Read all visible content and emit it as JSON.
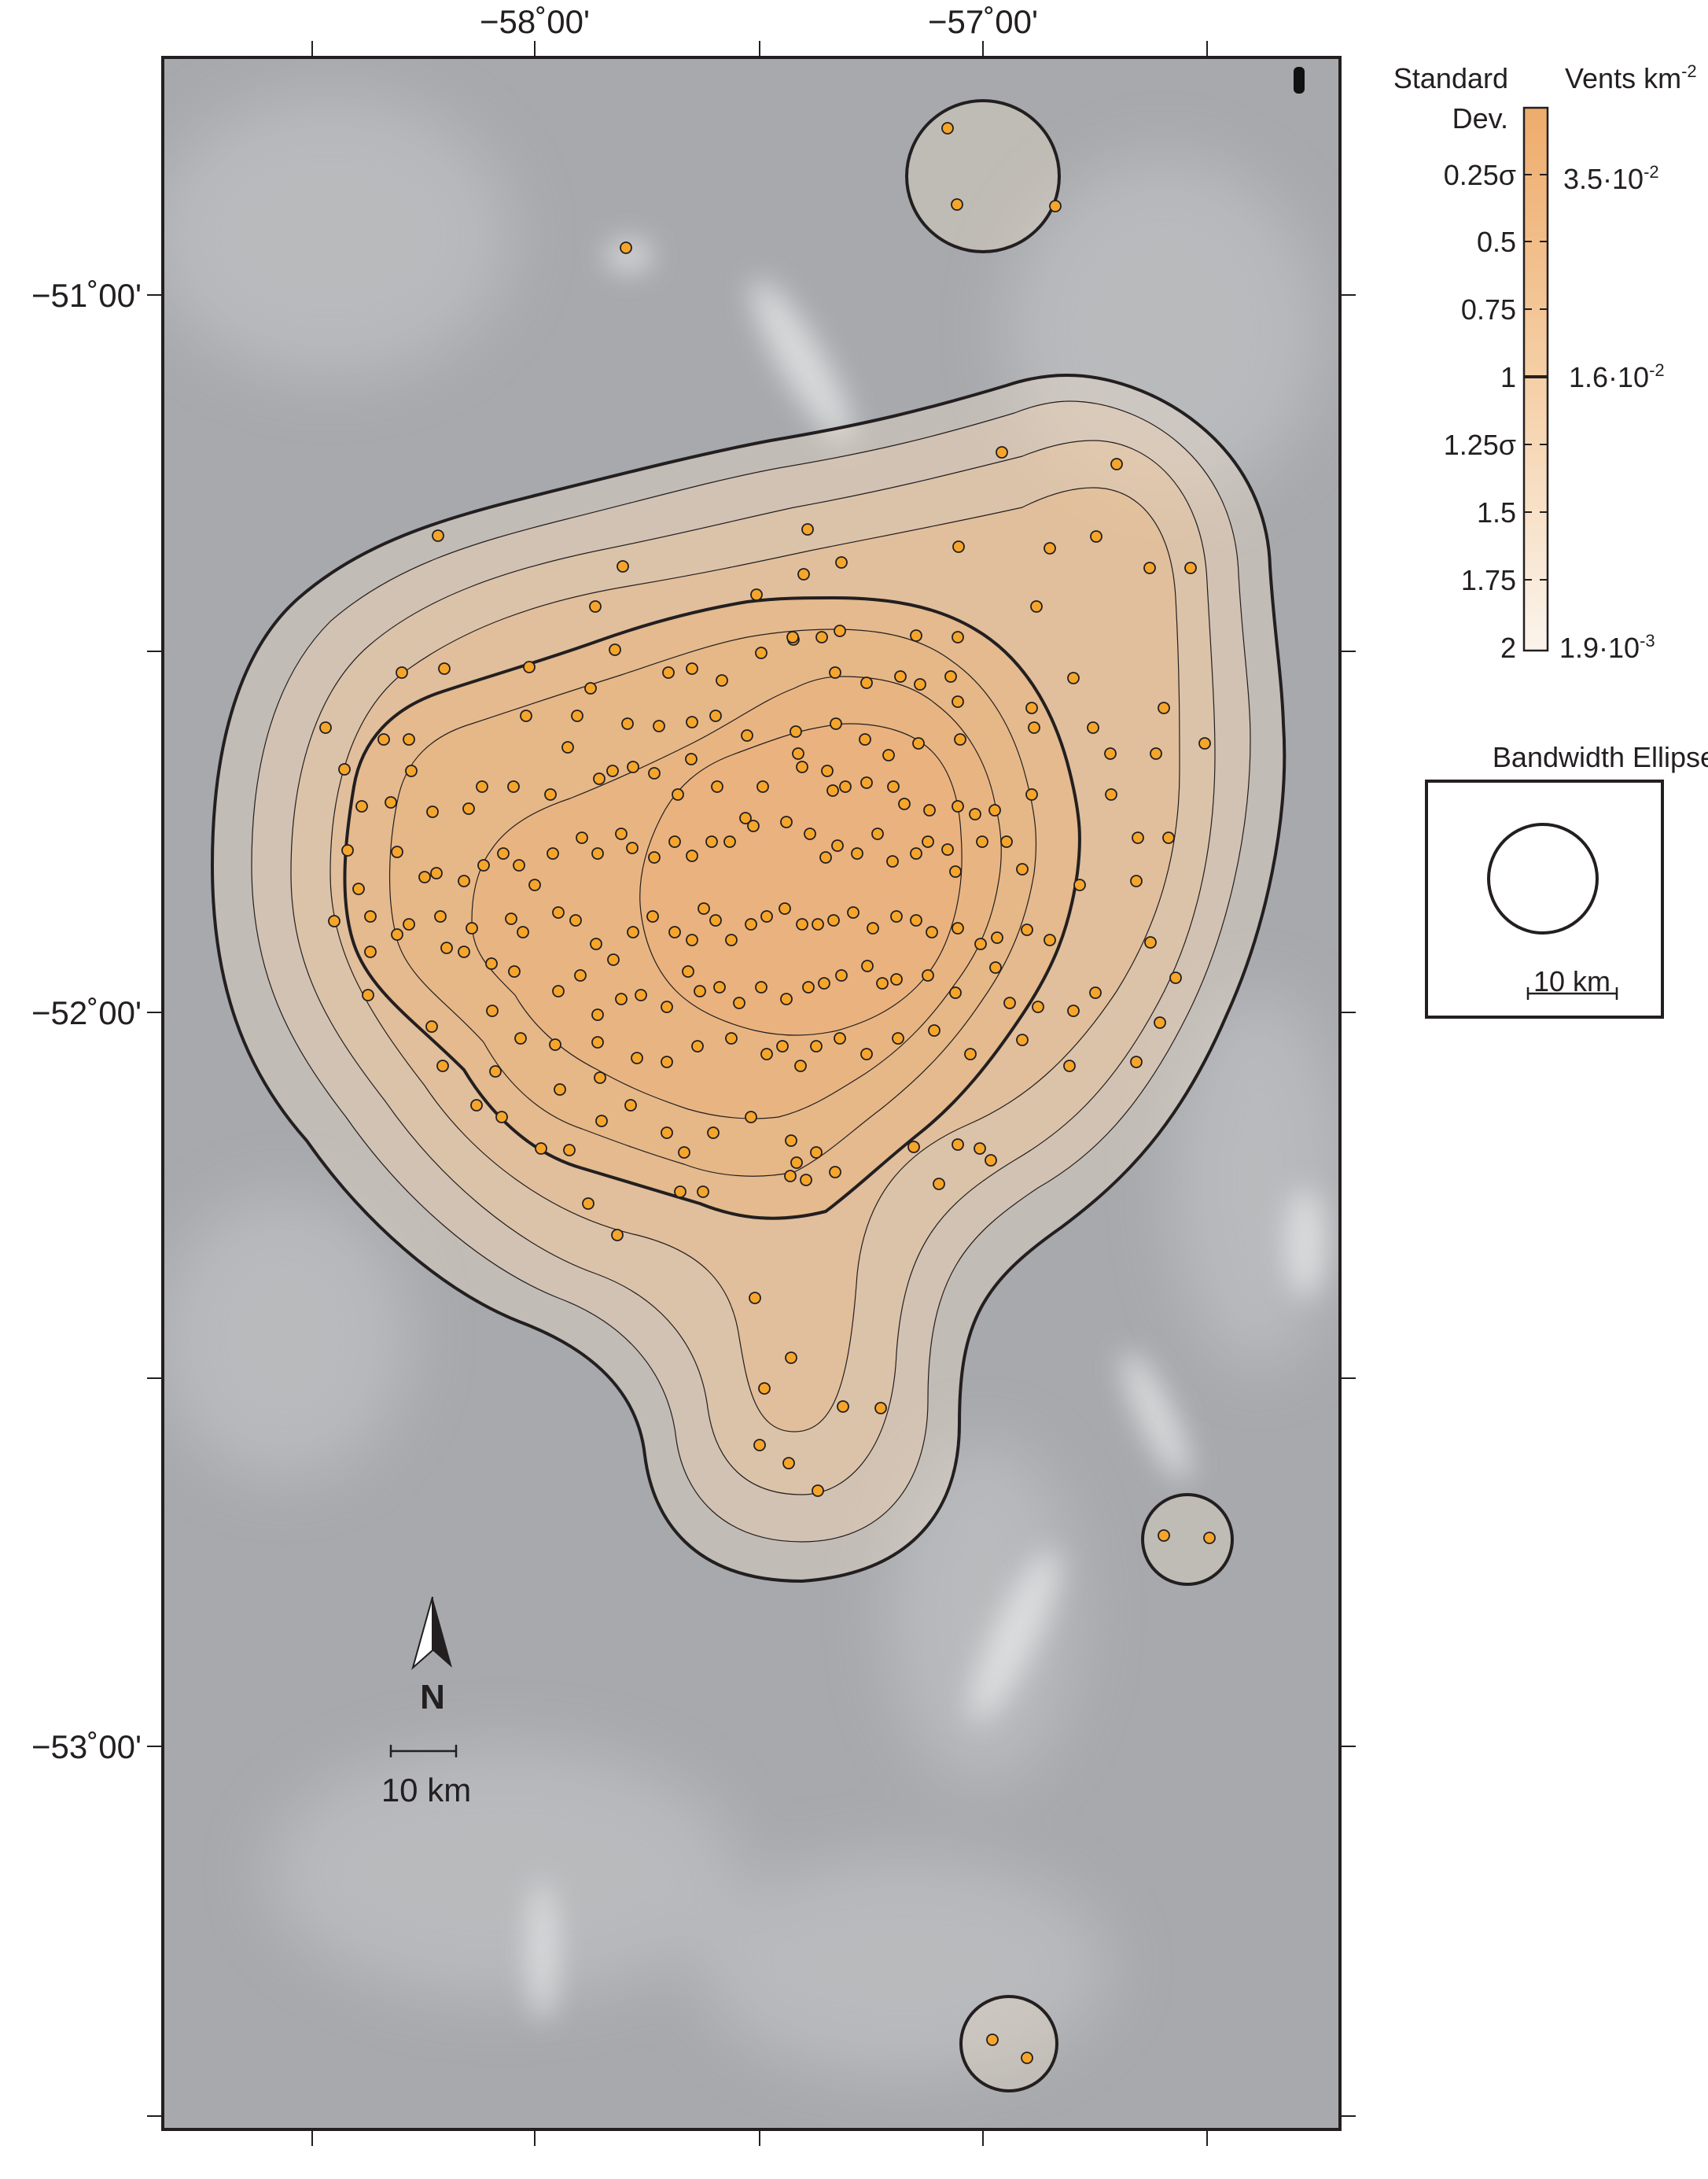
{
  "axes": {
    "top_ticks": [
      "−58˚00'",
      "−57˚00'"
    ],
    "left_ticks": [
      "−51˚00'",
      "−52˚00'",
      "−53˚00'"
    ]
  },
  "north_arrow": {
    "label": "N"
  },
  "scale_bar": {
    "label": "10 km"
  },
  "legend": {
    "col1_title_line1": "Standard",
    "col1_title_line2": "Dev.",
    "col2_title": "Vents km",
    "col2_title_sup": "-2",
    "std_labels": [
      "0.25σ",
      "0.5",
      "0.75",
      "1",
      "1.25σ",
      "1.5",
      "1.75",
      "2"
    ],
    "density_labels": [
      {
        "base": "3.5·10",
        "exp": "-2"
      },
      {
        "base": "1.6·10",
        "exp": "-2"
      },
      {
        "base": "1.9·10",
        "exp": "-3"
      }
    ],
    "colors": {
      "high": "#eeac6c",
      "low": "#fbf4ec"
    }
  },
  "bandwidth": {
    "title": "Bandwidth Ellipse",
    "scale_label": "10 km"
  },
  "colors": {
    "background": "#a7a9ac",
    "vent_fill": "#f6a52b",
    "contour": "#231f20"
  }
}
